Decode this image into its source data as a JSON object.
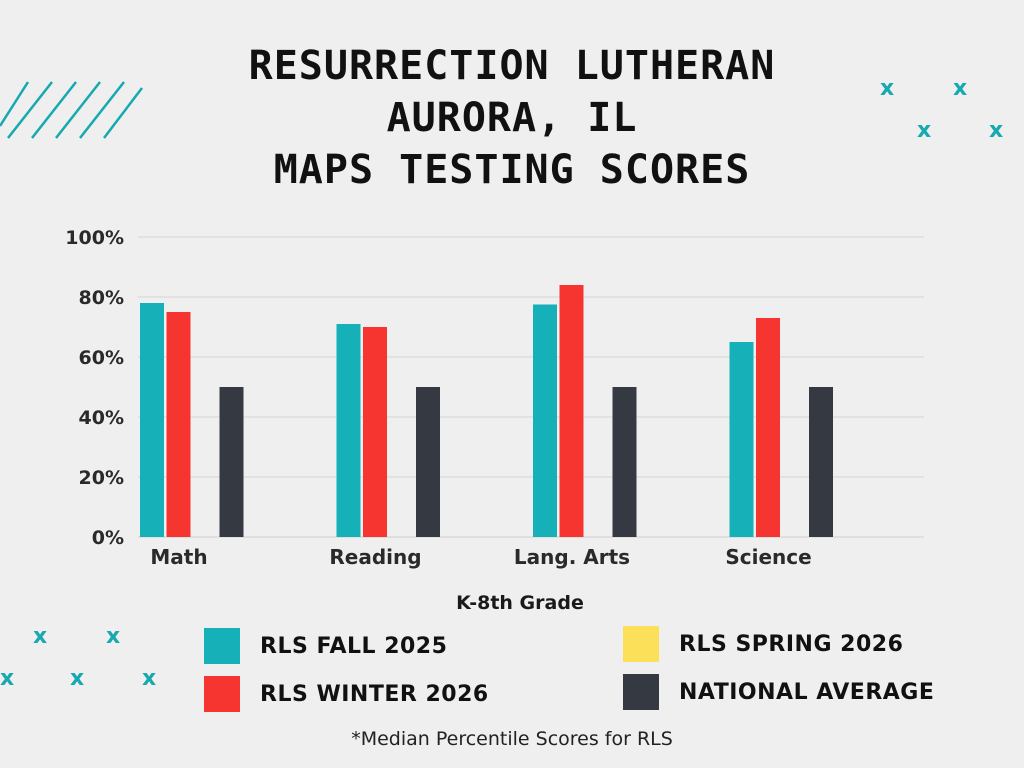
{
  "title_lines": [
    "RESURRECTION LUTHERAN",
    "AURORA, IL",
    "MAPS TESTING SCORES"
  ],
  "decor": {
    "cross_glyph": "x",
    "accent": "#16a9b0"
  },
  "chart_data": {
    "type": "bar",
    "categories": [
      "Math",
      "Reading",
      "Lang. Arts",
      "Science"
    ],
    "series": [
      {
        "name": "RLS FALL 2025",
        "color": "#16b1b8",
        "values": [
          78,
          71,
          77.5,
          65
        ]
      },
      {
        "name": "RLS WINTER 2026",
        "color": "#f73530",
        "values": [
          75,
          70,
          84,
          73
        ]
      },
      {
        "name": "RLS SPRING 2026",
        "color": "#fde05a",
        "values": [
          null,
          null,
          null,
          null
        ]
      },
      {
        "name": "NATIONAL AVERAGE",
        "color": "#353a42",
        "values": [
          50,
          50,
          50,
          50
        ]
      }
    ],
    "ylim": [
      0,
      100
    ],
    "yticks": [
      0,
      20,
      40,
      60,
      80,
      100
    ],
    "ytick_labels": [
      "0%",
      "20%",
      "40%",
      "60%",
      "80%",
      "100%"
    ],
    "xlabel": "K-8th Grade",
    "ylabel": "",
    "grid": true,
    "legend_position": "bottom"
  },
  "footnote": "*Median Percentile Scores for RLS"
}
